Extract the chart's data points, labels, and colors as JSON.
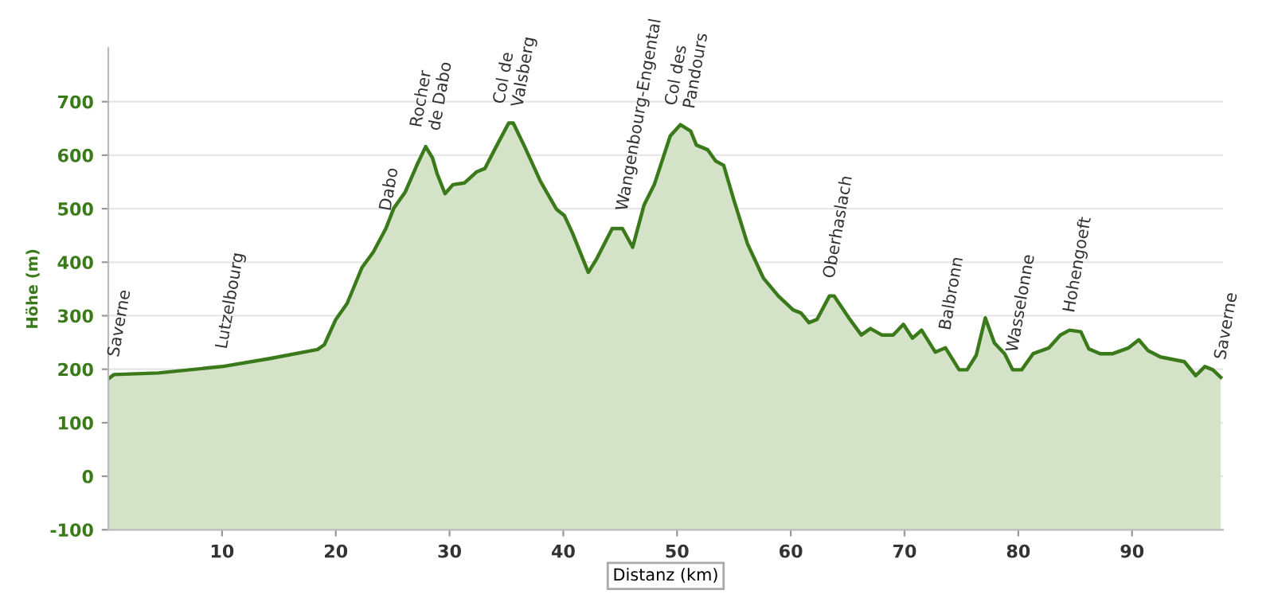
{
  "chart_data": {
    "type": "area",
    "xlabel": "Distanz (km)",
    "ylabel": "Höhe (m)",
    "x": [
      0,
      0.5,
      4.4,
      10,
      14.2,
      18.4,
      19,
      20,
      21,
      22.3,
      23.3,
      24.4,
      25.1,
      26.1,
      27.1,
      27.9,
      28.5,
      28.9,
      29.6,
      30.3,
      31.3,
      32.4,
      33.1,
      34.1,
      35.2,
      35.6,
      36.6,
      38,
      39.4,
      40.1,
      40.8,
      42.2,
      42.9,
      44.3,
      45.2,
      46.1,
      47.1,
      48,
      49.4,
      50.3,
      51.2,
      51.7,
      52.7,
      53.4,
      54.1,
      55,
      56.2,
      57.6,
      58.9,
      60.2,
      60.9,
      61.6,
      62.3,
      63.4,
      63.8,
      65.2,
      66.2,
      67,
      68,
      69,
      69.9,
      70.7,
      71.5,
      72.7,
      73.6,
      74.8,
      75.5,
      76.3,
      77.1,
      77.9,
      78.8,
      79.5,
      80.3,
      81.3,
      82.7,
      83.7,
      84.5,
      85.5,
      86.2,
      87.2,
      88.3,
      89.7,
      90.6,
      91.4,
      92.5,
      94.6,
      95.6,
      96.4,
      97.1,
      97.8
    ],
    "series": [
      {
        "color": "#3b7a1a",
        "values": [
          182,
          190,
          193,
          205,
          220,
          237,
          246,
          293,
          323,
          390,
          419,
          463,
          501,
          531,
          580,
          616,
          595,
          566,
          528,
          545,
          548,
          569,
          575,
          616,
          660,
          660,
          616,
          551,
          499,
          487,
          455,
          381,
          405,
          463,
          463,
          428,
          507,
          545,
          636,
          657,
          645,
          619,
          610,
          589,
          581,
          516,
          434,
          370,
          337,
          311,
          305,
          287,
          293,
          337,
          337,
          293,
          264,
          276,
          264,
          264,
          284,
          258,
          273,
          232,
          240,
          199,
          199,
          226,
          296,
          249,
          229,
          199,
          199,
          229,
          240,
          264,
          273,
          270,
          238,
          229,
          229,
          240,
          255,
          235,
          223,
          214,
          188,
          205,
          199,
          185
        ]
      }
    ],
    "xlim": [
      0,
      98
    ],
    "ylim": [
      -100,
      800
    ],
    "xticks": [
      10,
      20,
      30,
      40,
      50,
      60,
      70,
      80,
      90
    ],
    "yticks": [
      -100,
      0,
      100,
      200,
      300,
      400,
      500,
      600,
      700
    ],
    "grid": "y",
    "bands": [
      {
        "axis": "y",
        "from": -100,
        "to": 0,
        "color": "#d4e3c8"
      }
    ],
    "annotations": [
      {
        "text": "Saverne",
        "x": 0.5,
        "y": 190
      },
      {
        "text": "Lutzelbourg",
        "x": 10,
        "y": 205
      },
      {
        "text": "Dabo",
        "x": 24.4,
        "y": 463
      },
      {
        "text": "Rocher\nde Dabo",
        "x": 27.9,
        "y": 616
      },
      {
        "text": "Col de\nValsberg",
        "x": 35.2,
        "y": 660
      },
      {
        "text": "Wangenbourg-Engental",
        "x": 45.2,
        "y": 463
      },
      {
        "text": "Col des\nPandours",
        "x": 50.3,
        "y": 657
      },
      {
        "text": "Oberhaslach",
        "x": 63.4,
        "y": 337
      },
      {
        "text": "Balbronn",
        "x": 73.6,
        "y": 240
      },
      {
        "text": "Wasselonne",
        "x": 79.5,
        "y": 199
      },
      {
        "text": "Hohengoeft",
        "x": 84.5,
        "y": 273
      },
      {
        "text": "Saverne",
        "x": 97.8,
        "y": 185
      }
    ]
  }
}
